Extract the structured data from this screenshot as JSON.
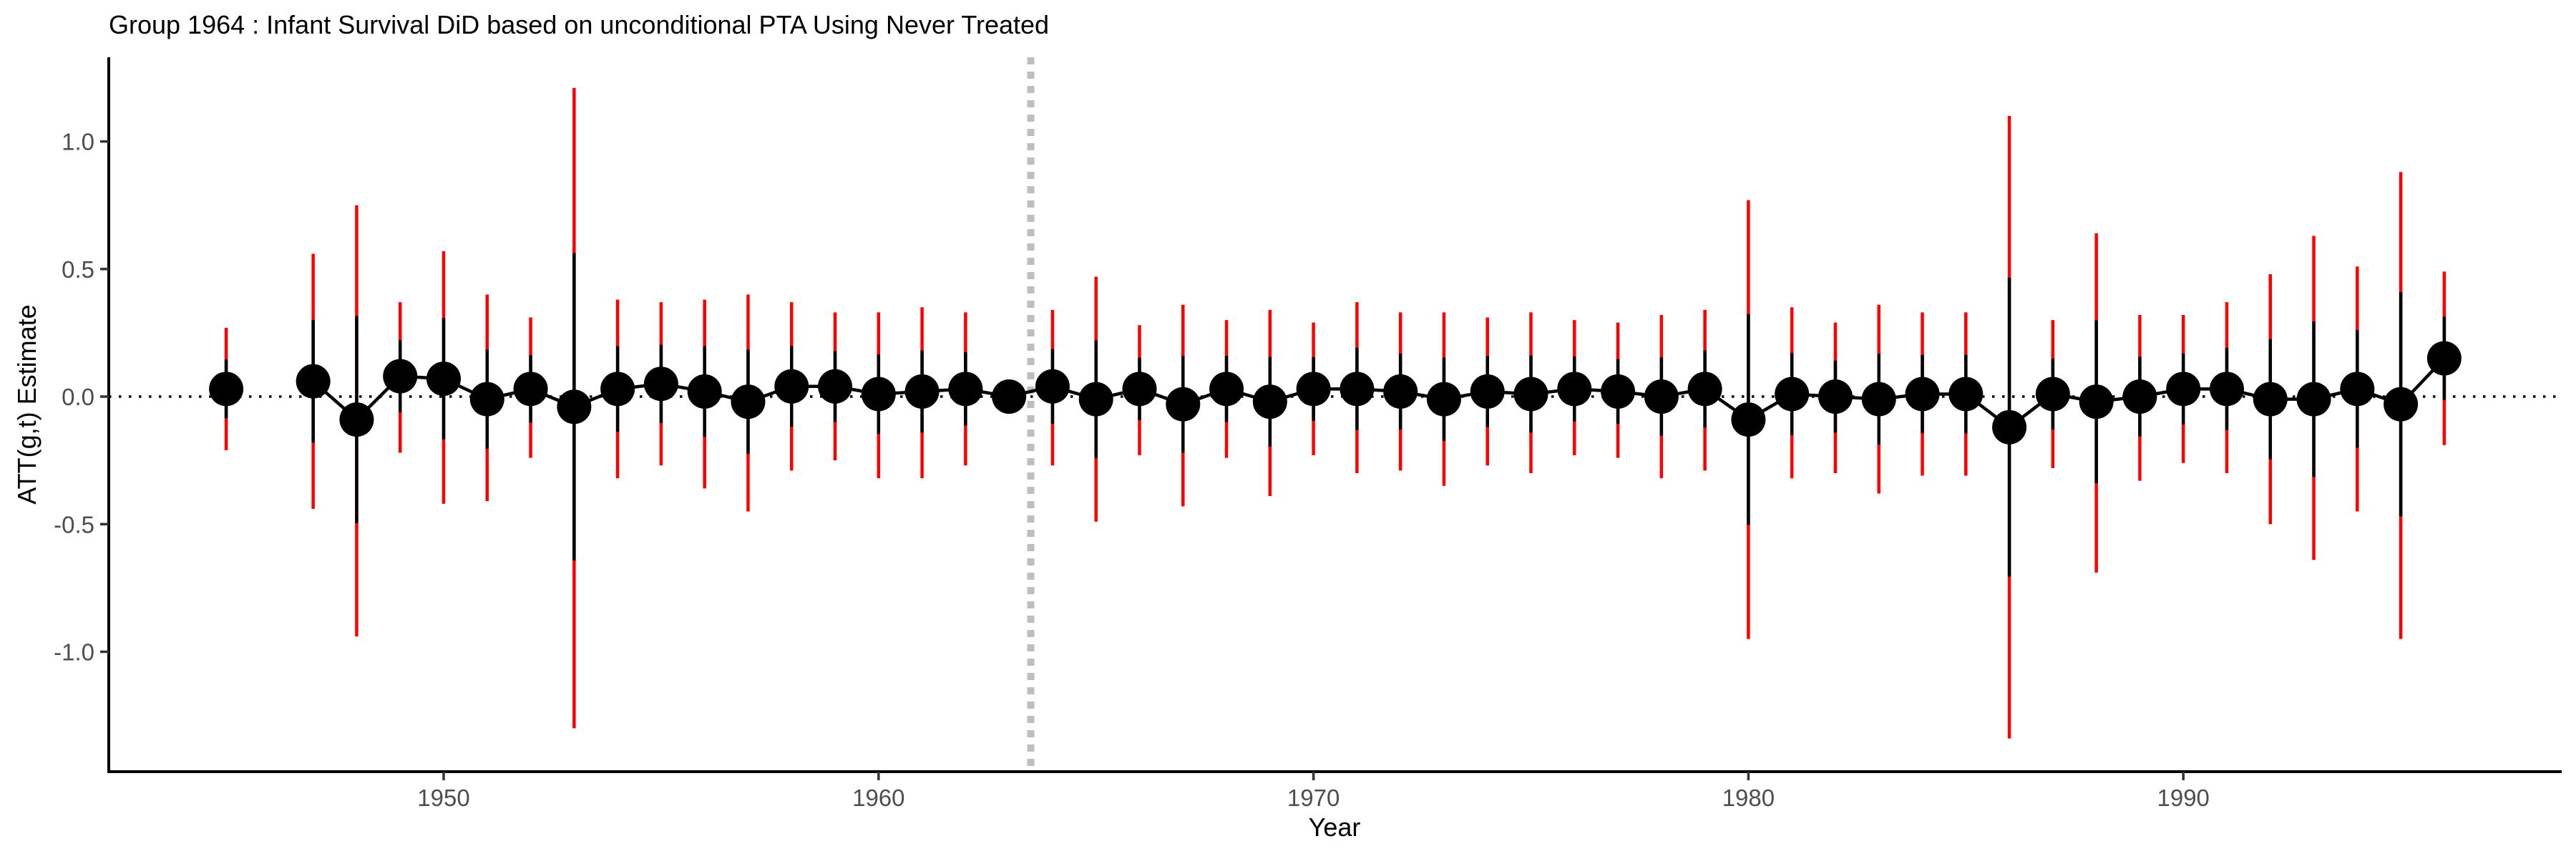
{
  "chart_data": {
    "type": "scatter",
    "title": "Group 1964 : Infant Survival DiD based on unconditional PTA Using Never Treated",
    "xlabel": "Year",
    "ylabel": "ATT(g,t) Estimate",
    "xlim": [
      1942.3,
      1998.7
    ],
    "ylim": [
      -1.47,
      1.33
    ],
    "xticks": [
      1950,
      1960,
      1970,
      1980,
      1990
    ],
    "yticks": [
      1.0,
      0.5,
      0.0,
      -0.5,
      -1.0
    ],
    "xtick_labels": [
      "1950",
      "1960",
      "1970",
      "1980",
      "1990"
    ],
    "ytick_labels": [
      "1.0",
      "0.5",
      "0.0",
      "-0.5",
      "-1.0"
    ],
    "treatment_year": 1964,
    "reference_line_y": 0,
    "colors": {
      "point": "#000000",
      "ci_simultaneous": "#ff0000",
      "ci_pointwise": "#000000",
      "vline": "#bebebe",
      "axis": "#000000"
    },
    "series": [
      {
        "name": "ATT",
        "points": [
          {
            "x": 1945,
            "y": 0.03,
            "lo": -0.21,
            "hi": 0.27
          },
          {
            "x": 1947,
            "y": 0.06,
            "lo": -0.44,
            "hi": 0.56
          },
          {
            "x": 1948,
            "y": -0.09,
            "lo": -0.94,
            "hi": 0.75
          },
          {
            "x": 1949,
            "y": 0.08,
            "lo": -0.22,
            "hi": 0.37
          },
          {
            "x": 1950,
            "y": 0.07,
            "lo": -0.42,
            "hi": 0.57
          },
          {
            "x": 1951,
            "y": -0.01,
            "lo": -0.41,
            "hi": 0.4
          },
          {
            "x": 1952,
            "y": 0.03,
            "lo": -0.24,
            "hi": 0.31
          },
          {
            "x": 1953,
            "y": -0.04,
            "lo": -1.3,
            "hi": 1.21
          },
          {
            "x": 1954,
            "y": 0.03,
            "lo": -0.32,
            "hi": 0.38
          },
          {
            "x": 1955,
            "y": 0.05,
            "lo": -0.27,
            "hi": 0.37
          },
          {
            "x": 1956,
            "y": 0.02,
            "lo": -0.36,
            "hi": 0.38
          },
          {
            "x": 1957,
            "y": -0.02,
            "lo": -0.45,
            "hi": 0.4
          },
          {
            "x": 1958,
            "y": 0.04,
            "lo": -0.29,
            "hi": 0.37
          },
          {
            "x": 1959,
            "y": 0.04,
            "lo": -0.25,
            "hi": 0.33
          },
          {
            "x": 1960,
            "y": 0.01,
            "lo": -0.32,
            "hi": 0.33
          },
          {
            "x": 1961,
            "y": 0.02,
            "lo": -0.32,
            "hi": 0.35
          },
          {
            "x": 1962,
            "y": 0.03,
            "lo": -0.27,
            "hi": 0.33
          },
          {
            "x": 1963,
            "y": 0.0,
            "lo": 0.0,
            "hi": 0.0
          },
          {
            "x": 1964,
            "y": 0.04,
            "lo": -0.27,
            "hi": 0.34
          },
          {
            "x": 1965,
            "y": -0.01,
            "lo": -0.49,
            "hi": 0.47
          },
          {
            "x": 1966,
            "y": 0.03,
            "lo": -0.23,
            "hi": 0.28
          },
          {
            "x": 1967,
            "y": -0.03,
            "lo": -0.43,
            "hi": 0.36
          },
          {
            "x": 1968,
            "y": 0.03,
            "lo": -0.24,
            "hi": 0.3
          },
          {
            "x": 1969,
            "y": -0.02,
            "lo": -0.39,
            "hi": 0.34
          },
          {
            "x": 1970,
            "y": 0.03,
            "lo": -0.23,
            "hi": 0.29
          },
          {
            "x": 1971,
            "y": 0.03,
            "lo": -0.3,
            "hi": 0.37
          },
          {
            "x": 1972,
            "y": 0.02,
            "lo": -0.29,
            "hi": 0.33
          },
          {
            "x": 1973,
            "y": -0.01,
            "lo": -0.35,
            "hi": 0.33
          },
          {
            "x": 1974,
            "y": 0.02,
            "lo": -0.27,
            "hi": 0.31
          },
          {
            "x": 1975,
            "y": 0.01,
            "lo": -0.3,
            "hi": 0.33
          },
          {
            "x": 1976,
            "y": 0.03,
            "lo": -0.23,
            "hi": 0.3
          },
          {
            "x": 1977,
            "y": 0.02,
            "lo": -0.24,
            "hi": 0.29
          },
          {
            "x": 1978,
            "y": 0.0,
            "lo": -0.32,
            "hi": 0.32
          },
          {
            "x": 1979,
            "y": 0.03,
            "lo": -0.29,
            "hi": 0.34
          },
          {
            "x": 1980,
            "y": -0.09,
            "lo": -0.95,
            "hi": 0.77
          },
          {
            "x": 1981,
            "y": 0.01,
            "lo": -0.32,
            "hi": 0.35
          },
          {
            "x": 1982,
            "y": 0.0,
            "lo": -0.3,
            "hi": 0.29
          },
          {
            "x": 1983,
            "y": -0.01,
            "lo": -0.38,
            "hi": 0.36
          },
          {
            "x": 1984,
            "y": 0.01,
            "lo": -0.31,
            "hi": 0.33
          },
          {
            "x": 1985,
            "y": 0.01,
            "lo": -0.31,
            "hi": 0.33
          },
          {
            "x": 1986,
            "y": -0.12,
            "lo": -1.34,
            "hi": 1.1
          },
          {
            "x": 1987,
            "y": 0.01,
            "lo": -0.28,
            "hi": 0.3
          },
          {
            "x": 1988,
            "y": -0.02,
            "lo": -0.69,
            "hi": 0.64
          },
          {
            "x": 1989,
            "y": 0.0,
            "lo": -0.33,
            "hi": 0.32
          },
          {
            "x": 1990,
            "y": 0.03,
            "lo": -0.26,
            "hi": 0.32
          },
          {
            "x": 1991,
            "y": 0.03,
            "lo": -0.3,
            "hi": 0.37
          },
          {
            "x": 1992,
            "y": -0.01,
            "lo": -0.5,
            "hi": 0.48
          },
          {
            "x": 1993,
            "y": -0.01,
            "lo": -0.64,
            "hi": 0.63
          },
          {
            "x": 1994,
            "y": 0.03,
            "lo": -0.45,
            "hi": 0.51
          },
          {
            "x": 1995,
            "y": -0.03,
            "lo": -0.95,
            "hi": 0.88
          },
          {
            "x": 1996,
            "y": 0.15,
            "lo": -0.19,
            "hi": 0.49
          }
        ]
      }
    ]
  }
}
